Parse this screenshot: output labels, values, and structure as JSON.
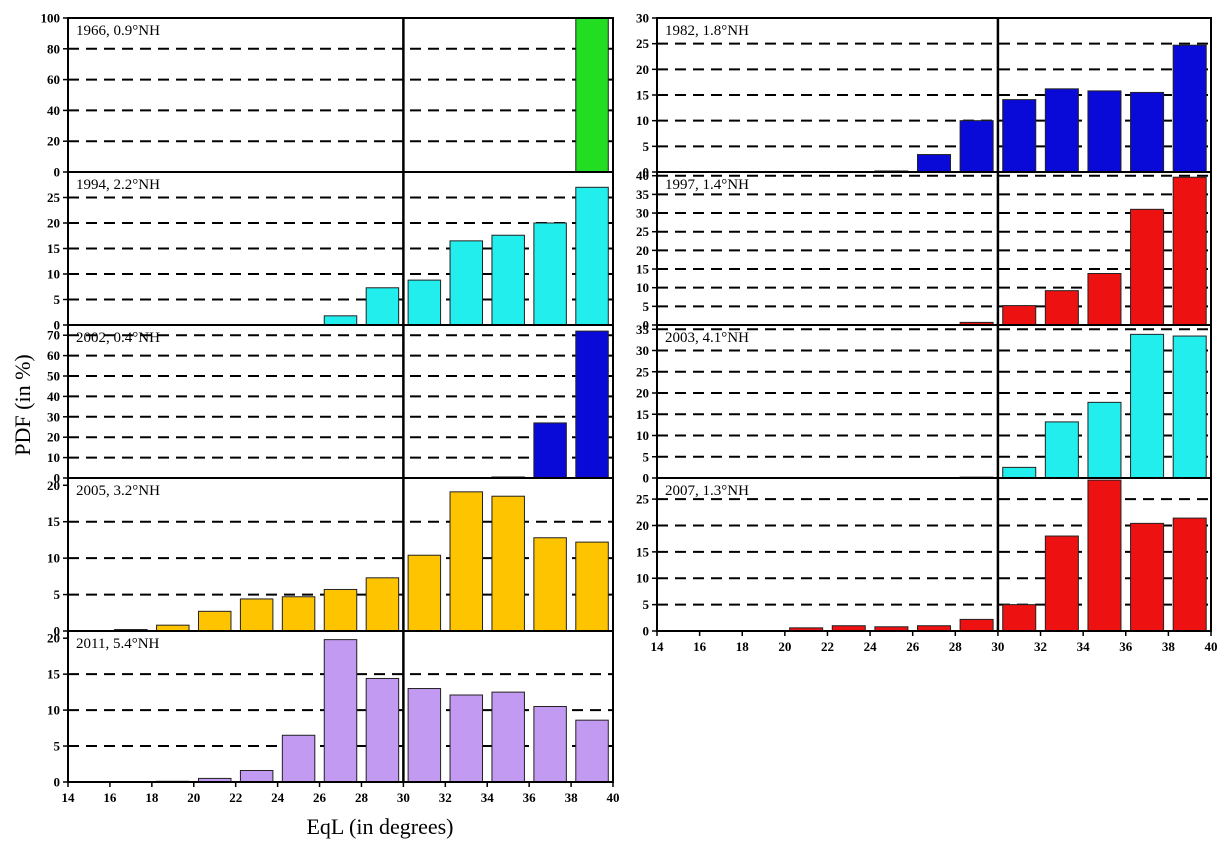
{
  "figure": {
    "ylabel": "PDF (in %)",
    "xlabel": "EqL (in degrees)"
  },
  "colors": {
    "green": "#22dd22",
    "blue": "#0a0ad8",
    "cyan": "#22eeee",
    "red": "#ee1111",
    "orange": "#ffc400",
    "violet": "#c39af2"
  },
  "chart_data": [
    {
      "type": "bar",
      "label": "1966, 0.9°NH",
      "x": [
        15,
        17,
        19,
        21,
        23,
        25,
        27,
        29,
        31,
        33,
        35,
        37,
        39
      ],
      "values": [
        0,
        0,
        0,
        0,
        0,
        0,
        0,
        0,
        0,
        0,
        0,
        0,
        100
      ],
      "color": "#22dd22",
      "ylim": [
        0,
        100
      ],
      "yticks": [
        0,
        20,
        40,
        60,
        80,
        100
      ],
      "dashed": [
        20,
        40,
        60,
        80
      ],
      "xlim": [
        14,
        40
      ],
      "reference_line_x": 30
    },
    {
      "type": "bar",
      "label": "1994, 2.2°NH",
      "x": [
        15,
        17,
        19,
        21,
        23,
        25,
        27,
        29,
        31,
        33,
        35,
        37,
        39
      ],
      "values": [
        0,
        0,
        0,
        0,
        0,
        0,
        1.8,
        7.3,
        8.8,
        16.5,
        17.6,
        20,
        27
      ],
      "color": "#22eeee",
      "ylim": [
        0,
        30
      ],
      "yticks": [
        0,
        5,
        10,
        15,
        20,
        25
      ],
      "dashed": [
        5,
        10,
        15,
        20,
        25
      ],
      "xlim": [
        14,
        40
      ],
      "reference_line_x": 30
    },
    {
      "type": "bar",
      "label": "2002, 0.4°NH",
      "x": [
        15,
        17,
        19,
        21,
        23,
        25,
        27,
        29,
        31,
        33,
        35,
        37,
        39
      ],
      "values": [
        0,
        0,
        0,
        0,
        0,
        0,
        0,
        0,
        0,
        0,
        0.5,
        27,
        72
      ],
      "color": "#0a0ad8",
      "ylim": [
        0,
        75
      ],
      "yticks": [
        0,
        10,
        20,
        30,
        40,
        50,
        60,
        70
      ],
      "dashed": [
        10,
        20,
        30,
        40,
        50,
        60,
        70
      ],
      "xlim": [
        14,
        40
      ],
      "reference_line_x": 30
    },
    {
      "type": "bar",
      "label": "2005, 3.2°NH",
      "x": [
        15,
        17,
        19,
        21,
        23,
        25,
        27,
        29,
        31,
        33,
        35,
        37,
        39
      ],
      "values": [
        0,
        0.2,
        0.8,
        2.7,
        4.4,
        4.7,
        5.7,
        7.3,
        10.4,
        19.1,
        18.5,
        12.8,
        12.2
      ],
      "color": "#ffc400",
      "ylim": [
        0,
        21
      ],
      "yticks": [
        0,
        5,
        10,
        15,
        20
      ],
      "dashed": [
        5,
        10,
        15
      ],
      "xlim": [
        14,
        40
      ],
      "reference_line_x": 30
    },
    {
      "type": "bar",
      "label": "2011, 5.4°NH",
      "x": [
        15,
        17,
        19,
        21,
        23,
        25,
        27,
        29,
        31,
        33,
        35,
        37,
        39
      ],
      "values": [
        0,
        0,
        0.1,
        0.5,
        1.6,
        6.5,
        19.8,
        14.4,
        13,
        12.1,
        12.5,
        10.5,
        8.6
      ],
      "color": "#c39af2",
      "ylim": [
        0,
        21
      ],
      "yticks": [
        0,
        5,
        10,
        15,
        20
      ],
      "dashed": [
        5,
        10,
        15
      ],
      "xlim": [
        14,
        40
      ],
      "xticks": [
        14,
        16,
        18,
        20,
        22,
        24,
        26,
        28,
        30,
        32,
        34,
        36,
        38,
        40
      ],
      "reference_line_x": 30
    },
    {
      "type": "bar",
      "label": "1982, 1.8°NH",
      "x": [
        15,
        17,
        19,
        21,
        23,
        25,
        27,
        29,
        31,
        33,
        35,
        37,
        39
      ],
      "values": [
        0,
        0,
        0,
        0,
        0,
        0.2,
        3.4,
        10,
        14.1,
        16.2,
        15.8,
        15.5,
        24.7
      ],
      "color": "#0a0ad8",
      "ylim": [
        0,
        30
      ],
      "yticks": [
        0,
        5,
        10,
        15,
        20,
        25,
        30
      ],
      "dashed": [
        5,
        10,
        15,
        20,
        25
      ],
      "xlim": [
        14,
        40
      ],
      "reference_line_x": 30
    },
    {
      "type": "bar",
      "label": "1997, 1.4°NH",
      "x": [
        15,
        17,
        19,
        21,
        23,
        25,
        27,
        29,
        31,
        33,
        35,
        37,
        39
      ],
      "values": [
        0,
        0,
        0,
        0,
        0,
        0,
        0,
        0.7,
        5.2,
        9.2,
        13.8,
        31,
        39.6
      ],
      "color": "#ee1111",
      "ylim": [
        0,
        41
      ],
      "yticks": [
        0,
        5,
        10,
        15,
        20,
        25,
        30,
        35,
        40
      ],
      "dashed": [
        5,
        10,
        15,
        20,
        25,
        30,
        35,
        40
      ],
      "xlim": [
        14,
        40
      ],
      "reference_line_x": 30
    },
    {
      "type": "bar",
      "label": "2003, 4.1°NH",
      "x": [
        15,
        17,
        19,
        21,
        23,
        25,
        27,
        29,
        31,
        33,
        35,
        37,
        39
      ],
      "values": [
        0,
        0,
        0,
        0,
        0,
        0,
        0,
        0.2,
        2.5,
        13.2,
        17.8,
        33.8,
        33.4
      ],
      "color": "#22eeee",
      "ylim": [
        0,
        36
      ],
      "yticks": [
        0,
        5,
        10,
        15,
        20,
        25,
        30,
        35
      ],
      "dashed": [
        5,
        10,
        15,
        20,
        25,
        30,
        35
      ],
      "xlim": [
        14,
        40
      ],
      "reference_line_x": 30
    },
    {
      "type": "bar",
      "label": "2007, 1.3°NH",
      "x": [
        15,
        17,
        19,
        21,
        23,
        25,
        27,
        29,
        31,
        33,
        35,
        37,
        39
      ],
      "values": [
        0,
        0,
        0,
        0.6,
        1,
        0.8,
        1,
        2.2,
        5,
        18,
        28.6,
        20.4,
        21.4
      ],
      "color": "#ee1111",
      "ylim": [
        0,
        29
      ],
      "yticks": [
        0,
        5,
        10,
        15,
        20,
        25
      ],
      "dashed": [
        5,
        10,
        15,
        20,
        25
      ],
      "xlim": [
        14,
        40
      ],
      "xticks": [
        14,
        16,
        18,
        20,
        22,
        24,
        26,
        28,
        30,
        32,
        34,
        36,
        38,
        40
      ],
      "reference_line_x": 30
    }
  ]
}
